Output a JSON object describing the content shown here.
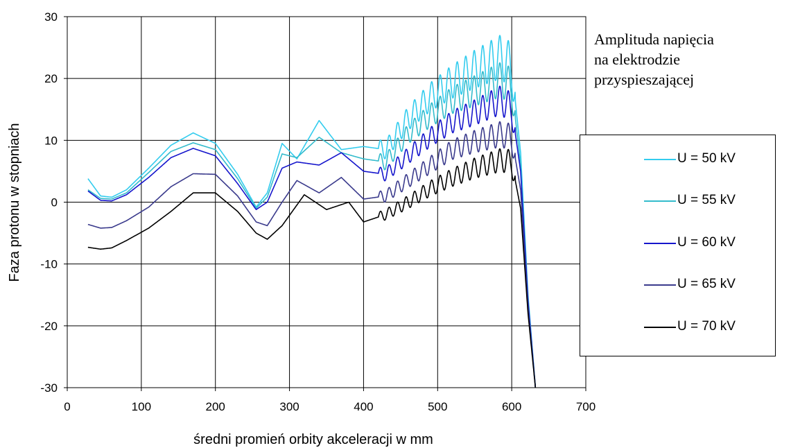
{
  "chart_data": {
    "type": "line",
    "title": "",
    "xlabel": "średni promień orbity akceleracji w mm",
    "ylabel": "Faza protonu w stopniach",
    "xlim": [
      0,
      700
    ],
    "ylim": [
      -30,
      30
    ],
    "xticks": [
      "0",
      "100",
      "200",
      "300",
      "400",
      "500",
      "600",
      "700"
    ],
    "yticks": [
      "30",
      "20",
      "10",
      "0",
      "-10",
      "-20",
      "-30"
    ],
    "grid": true,
    "legend_position": "right",
    "annotation": [
      "Amplituda napięcia",
      "na elektrodzie",
      "przyspieszającej"
    ],
    "series": [
      {
        "name": "U = 50 kV",
        "color": "#33ccee",
        "offset": 2.2,
        "osc_amp": 2.0,
        "osc_start": 1.4,
        "osc_end": 3.8,
        "x": [
          28,
          45,
          60,
          80,
          110,
          140,
          170,
          200,
          230,
          255,
          270,
          290,
          310,
          340,
          370,
          400,
          430,
          460,
          490,
          520,
          550,
          585,
          600,
          612,
          622,
          632
        ],
        "y": [
          3.8,
          1.0,
          0.8,
          2.0,
          5.5,
          9.2,
          11.2,
          9.5,
          4.5,
          -0.8,
          1.5,
          9.5,
          7.0,
          13.2,
          8.5,
          9.0,
          8.5,
          13.5,
          17.0,
          19.5,
          21.5,
          23.5,
          22.0,
          8.0,
          -15.0,
          -30.0
        ]
      },
      {
        "name": "U = 55 kV",
        "color": "#33bbcc",
        "offset": 1.6,
        "osc_amp": 1.8,
        "osc_start": 1.2,
        "osc_end": 3.0,
        "x": [
          28,
          45,
          60,
          80,
          110,
          140,
          170,
          200,
          230,
          255,
          270,
          290,
          310,
          340,
          370,
          400,
          430,
          460,
          490,
          520,
          550,
          585,
          600,
          612,
          622,
          632
        ],
        "y": [
          2.0,
          0.6,
          0.5,
          1.5,
          4.8,
          8.2,
          9.6,
          8.5,
          3.8,
          -1.0,
          0.8,
          7.8,
          7.2,
          10.5,
          8.0,
          7.0,
          6.5,
          11.0,
          14.0,
          16.5,
          18.0,
          19.8,
          18.8,
          6.0,
          -15.5,
          -30.0
        ]
      },
      {
        "name": "U = 60 kV",
        "color": "#1515cc",
        "offset": 1.3,
        "osc_amp": 1.6,
        "osc_start": 1.0,
        "osc_end": 2.5,
        "x": [
          28,
          45,
          60,
          80,
          110,
          140,
          170,
          200,
          230,
          255,
          270,
          290,
          310,
          340,
          370,
          400,
          430,
          460,
          490,
          520,
          550,
          585,
          600,
          612,
          622,
          632
        ],
        "y": [
          1.8,
          0.3,
          0.2,
          1.2,
          4.0,
          7.2,
          8.7,
          7.5,
          3.0,
          -1.2,
          0.0,
          5.5,
          6.5,
          6.0,
          8.0,
          5.0,
          4.5,
          7.5,
          10.5,
          13.0,
          14.5,
          16.5,
          15.2,
          5.0,
          -16.0,
          -30.0
        ]
      },
      {
        "name": "U = 65 kV",
        "color": "#3a3a8c",
        "offset": 1.2,
        "osc_amp": 1.4,
        "osc_start": 0.9,
        "osc_end": 2.2,
        "x": [
          28,
          45,
          60,
          80,
          110,
          140,
          170,
          200,
          230,
          255,
          270,
          290,
          310,
          340,
          370,
          400,
          430,
          460,
          490,
          520,
          550,
          585,
          600,
          612,
          622,
          632
        ],
        "y": [
          -3.6,
          -4.2,
          -4.1,
          -3.0,
          -0.8,
          2.5,
          4.6,
          4.5,
          1.0,
          -3.2,
          -3.8,
          0.0,
          3.5,
          1.5,
          4.0,
          0.5,
          1.0,
          3.5,
          6.0,
          8.5,
          9.8,
          11.0,
          10.5,
          2.0,
          -17.0,
          -30.0
        ]
      },
      {
        "name": "U = 70 kV",
        "color": "#000000",
        "offset": 1.0,
        "osc_amp": 1.3,
        "osc_start": 0.8,
        "osc_end": 2.0,
        "x": [
          28,
          45,
          60,
          80,
          110,
          140,
          170,
          200,
          230,
          255,
          270,
          290,
          320,
          350,
          380,
          400,
          430,
          460,
          490,
          520,
          550,
          585,
          600,
          612,
          622,
          632
        ],
        "y": [
          -7.3,
          -7.6,
          -7.4,
          -6.2,
          -4.2,
          -1.5,
          1.5,
          1.5,
          -1.5,
          -5.0,
          -6.0,
          -3.8,
          1.2,
          -1.2,
          0.0,
          -3.2,
          -2.0,
          0.0,
          2.2,
          4.0,
          5.5,
          6.8,
          6.5,
          -1.0,
          -18.0,
          -30.0
        ]
      }
    ]
  }
}
